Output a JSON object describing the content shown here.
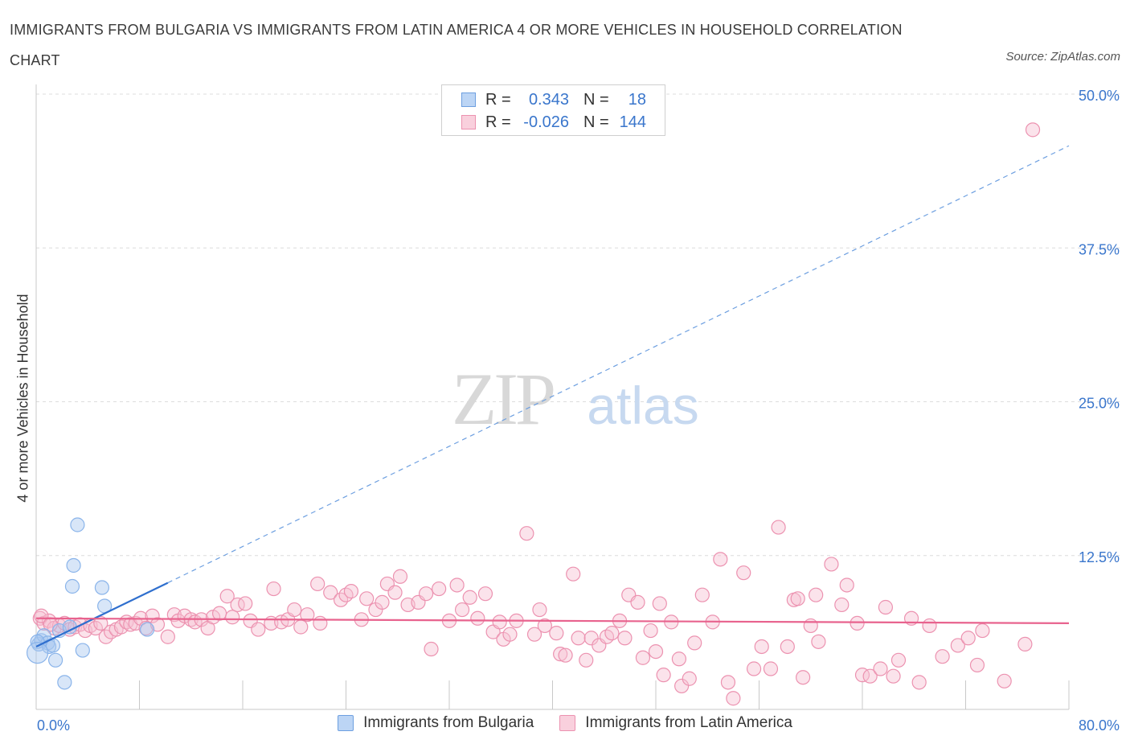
{
  "title": "IMMIGRANTS FROM BULGARIA VS IMMIGRANTS FROM LATIN AMERICA 4 OR MORE VEHICLES IN HOUSEHOLD CORRELATION CHART",
  "source": "Source: ZipAtlas.com",
  "watermark": {
    "zip": "ZIP",
    "atlas": "atlas"
  },
  "legend_top": {
    "rows": [
      {
        "r_label": "R =",
        "r_value": "0.343",
        "n_label": "N =",
        "n_value": "18",
        "color": "#a8c8f0",
        "border": "#6d9fe0"
      },
      {
        "r_label": "R =",
        "r_value": "-0.026",
        "n_label": "N =",
        "n_value": "144",
        "color": "#f7c1d2",
        "border": "#ec92b0"
      }
    ]
  },
  "chart_data": {
    "type": "scatter",
    "title": "IMMIGRANTS FROM BULGARIA VS IMMIGRANTS FROM LATIN AMERICA 4 OR MORE VEHICLES IN HOUSEHOLD CORRELATION CHART",
    "xlabel": "",
    "ylabel": "4 or more Vehicles in Household",
    "xlim": [
      0,
      80
    ],
    "ylim": [
      0,
      50
    ],
    "x_tick_labels": [
      "0.0%",
      "80.0%"
    ],
    "y_ticks": [
      12.5,
      25.0,
      37.5,
      50.0
    ],
    "y_tick_labels": [
      "12.5%",
      "25.0%",
      "37.5%",
      "50.0%"
    ],
    "grid": true,
    "legend_position": "bottom",
    "series": [
      {
        "name": "Immigrants from Bulgaria",
        "color": "#8ab4ea",
        "fill": "rgba(168,200,240,0.45)",
        "trend": {
          "x0": 0,
          "y0": 5.1,
          "x1": 80,
          "y1": 45.8,
          "solid_until": 10.2,
          "color": "#2f6fce"
        },
        "points": [
          [
            0.2,
            5.3
          ],
          [
            0.4,
            5.6
          ],
          [
            0.6,
            6.0
          ],
          [
            0.9,
            5.4
          ],
          [
            1.0,
            5.1
          ],
          [
            1.3,
            5.2
          ],
          [
            1.5,
            4.0
          ],
          [
            1.8,
            6.4
          ],
          [
            2.2,
            2.2
          ],
          [
            2.6,
            6.7
          ],
          [
            2.8,
            10.0
          ],
          [
            2.9,
            11.7
          ],
          [
            3.2,
            15.0
          ],
          [
            3.6,
            4.8
          ],
          [
            5.1,
            9.9
          ],
          [
            5.3,
            8.4
          ],
          [
            8.6,
            6.5
          ],
          [
            0.1,
            5.5
          ]
        ]
      },
      {
        "name": "Immigrants from Latin America",
        "color": "#ec92b0",
        "fill": "rgba(247,193,210,0.45)",
        "trend": {
          "x0": 0,
          "y0": 7.4,
          "x1": 80,
          "y1": 7.0,
          "color": "#e8638e"
        },
        "points": [
          [
            0.3,
            7.4
          ],
          [
            0.6,
            7.0
          ],
          [
            1.0,
            7.2
          ],
          [
            1.4,
            6.6
          ],
          [
            1.8,
            6.8
          ],
          [
            2.2,
            7.0
          ],
          [
            2.6,
            6.5
          ],
          [
            3.0,
            6.7
          ],
          [
            3.4,
            6.9
          ],
          [
            3.8,
            6.4
          ],
          [
            4.2,
            6.8
          ],
          [
            4.6,
            6.6
          ],
          [
            5.0,
            7.0
          ],
          [
            5.4,
            5.9
          ],
          [
            5.8,
            6.3
          ],
          [
            6.2,
            6.5
          ],
          [
            6.6,
            6.7
          ],
          [
            7.0,
            7.1
          ],
          [
            7.3,
            6.9
          ],
          [
            7.7,
            7.0
          ],
          [
            8.1,
            7.4
          ],
          [
            8.5,
            6.6
          ],
          [
            9.0,
            7.6
          ],
          [
            9.4,
            6.9
          ],
          [
            10.2,
            5.9
          ],
          [
            10.7,
            7.7
          ],
          [
            11.0,
            7.2
          ],
          [
            11.5,
            7.6
          ],
          [
            12.0,
            7.3
          ],
          [
            12.3,
            7.1
          ],
          [
            12.8,
            7.3
          ],
          [
            13.3,
            6.6
          ],
          [
            13.7,
            7.5
          ],
          [
            14.2,
            7.8
          ],
          [
            14.8,
            9.2
          ],
          [
            15.2,
            7.5
          ],
          [
            15.6,
            8.5
          ],
          [
            16.2,
            8.6
          ],
          [
            16.6,
            7.2
          ],
          [
            17.2,
            6.5
          ],
          [
            18.2,
            7.0
          ],
          [
            18.4,
            9.8
          ],
          [
            19.0,
            7.1
          ],
          [
            19.5,
            7.3
          ],
          [
            20.0,
            8.1
          ],
          [
            20.5,
            6.7
          ],
          [
            21.0,
            7.7
          ],
          [
            22.0,
            7.0
          ],
          [
            21.8,
            10.2
          ],
          [
            22.8,
            9.5
          ],
          [
            23.6,
            8.9
          ],
          [
            24.0,
            9.3
          ],
          [
            24.4,
            9.6
          ],
          [
            25.2,
            7.3
          ],
          [
            25.6,
            9.0
          ],
          [
            26.3,
            8.1
          ],
          [
            26.8,
            8.7
          ],
          [
            27.2,
            10.2
          ],
          [
            27.8,
            9.5
          ],
          [
            28.2,
            10.8
          ],
          [
            28.8,
            8.5
          ],
          [
            29.6,
            8.7
          ],
          [
            30.2,
            9.4
          ],
          [
            30.6,
            4.9
          ],
          [
            31.2,
            9.8
          ],
          [
            32.0,
            7.2
          ],
          [
            32.6,
            10.1
          ],
          [
            33.0,
            8.1
          ],
          [
            33.6,
            9.1
          ],
          [
            34.2,
            7.4
          ],
          [
            34.8,
            9.4
          ],
          [
            35.4,
            6.3
          ],
          [
            35.9,
            7.1
          ],
          [
            36.2,
            5.7
          ],
          [
            36.7,
            6.1
          ],
          [
            37.2,
            7.2
          ],
          [
            38.0,
            14.3
          ],
          [
            38.6,
            6.1
          ],
          [
            39.0,
            8.1
          ],
          [
            39.4,
            6.8
          ],
          [
            40.3,
            6.2
          ],
          [
            40.6,
            4.5
          ],
          [
            41.0,
            4.4
          ],
          [
            41.6,
            11.0
          ],
          [
            42.0,
            5.8
          ],
          [
            42.6,
            4.0
          ],
          [
            43.0,
            5.8
          ],
          [
            43.6,
            5.2
          ],
          [
            44.2,
            5.9
          ],
          [
            44.6,
            6.2
          ],
          [
            45.2,
            7.2
          ],
          [
            45.6,
            5.8
          ],
          [
            45.9,
            9.3
          ],
          [
            46.6,
            8.7
          ],
          [
            47.0,
            4.2
          ],
          [
            47.6,
            6.4
          ],
          [
            48.0,
            4.7
          ],
          [
            48.3,
            8.6
          ],
          [
            48.6,
            2.8
          ],
          [
            49.2,
            7.1
          ],
          [
            49.8,
            4.1
          ],
          [
            50.0,
            1.9
          ],
          [
            50.6,
            2.5
          ],
          [
            51.0,
            5.4
          ],
          [
            51.6,
            9.3
          ],
          [
            52.4,
            7.1
          ],
          [
            53.0,
            12.2
          ],
          [
            53.6,
            2.2
          ],
          [
            54.0,
            0.9
          ],
          [
            54.8,
            11.1
          ],
          [
            55.6,
            3.3
          ],
          [
            56.2,
            5.1
          ],
          [
            56.9,
            3.3
          ],
          [
            57.5,
            14.8
          ],
          [
            58.2,
            5.1
          ],
          [
            58.7,
            8.9
          ],
          [
            59.4,
            2.6
          ],
          [
            60.0,
            6.8
          ],
          [
            60.6,
            5.5
          ],
          [
            61.6,
            11.8
          ],
          [
            62.4,
            8.5
          ],
          [
            62.8,
            10.1
          ],
          [
            63.6,
            7.0
          ],
          [
            64.0,
            2.8
          ],
          [
            64.6,
            2.7
          ],
          [
            65.4,
            3.3
          ],
          [
            65.8,
            8.3
          ],
          [
            66.4,
            2.7
          ],
          [
            66.8,
            4.0
          ],
          [
            67.8,
            7.4
          ],
          [
            68.4,
            2.2
          ],
          [
            69.2,
            6.8
          ],
          [
            70.2,
            4.3
          ],
          [
            71.4,
            5.2
          ],
          [
            72.2,
            5.8
          ],
          [
            72.9,
            3.6
          ],
          [
            73.3,
            6.4
          ],
          [
            75.0,
            2.3
          ],
          [
            76.6,
            5.3
          ],
          [
            77.2,
            47.1
          ],
          [
            59.0,
            9.0
          ],
          [
            0.4,
            7.6
          ],
          [
            1.1,
            6.9
          ],
          [
            60.4,
            9.3
          ]
        ]
      }
    ]
  }
}
